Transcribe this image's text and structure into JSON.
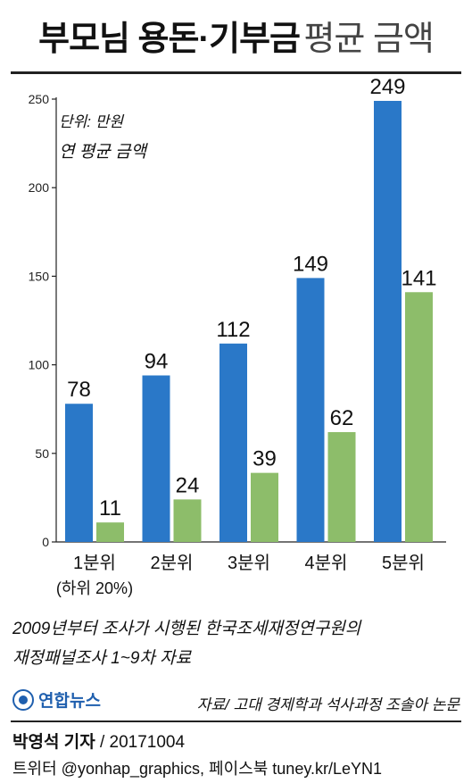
{
  "header": {
    "title_bold": "부모님 용돈·기부금",
    "title_light": "평균 금액"
  },
  "chart_data": {
    "type": "bar",
    "unit_label": "단위: 만원",
    "subtitle": "연 평균 금액",
    "categories": [
      "1분위",
      "2분위",
      "3분위",
      "4분위",
      "5분위"
    ],
    "category_notes": [
      "(하위 20%)",
      "",
      "",
      "",
      ""
    ],
    "series": [
      {
        "values": [
          78,
          94,
          112,
          149,
          249
        ],
        "color": "#2a78c8"
      },
      {
        "values": [
          11,
          24,
          39,
          62,
          141
        ],
        "color": "#8dbd6a"
      }
    ],
    "ylim": [
      0,
      250
    ],
    "yticks": [
      0,
      50,
      100,
      150,
      200,
      250
    ],
    "grid": false,
    "legend": "none"
  },
  "footer": {
    "note_line1": "2009년부터 조사가 시행된 한국조세재정연구원의",
    "note_line2": "재정패널조사 1~9차 자료",
    "logo_text": "연합뉴스",
    "source": "자료/ 고대 경제학과 석사과정 조솔아 논문",
    "reporter": "박영석 기자",
    "date": " / 20171004",
    "social": "트위터 @yonhap_graphics, 페이스북 tuney.kr/LeYN1"
  }
}
